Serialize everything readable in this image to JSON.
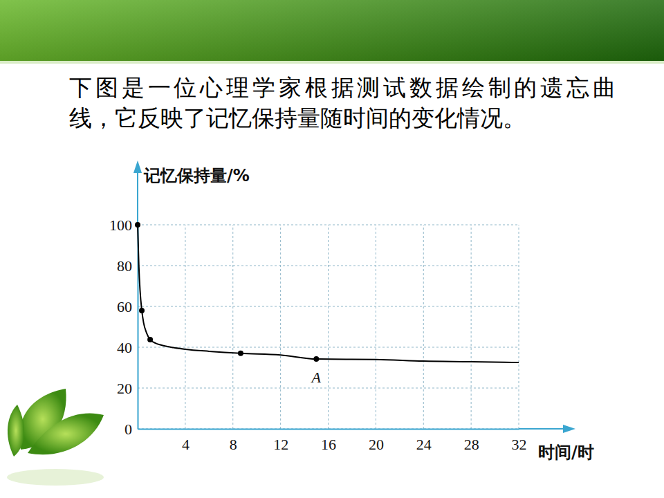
{
  "chart_data": {
    "type": "line",
    "title": [
      "下图是一位心理学家根据测试数据绘制的遗忘曲",
      "线，它反映了记忆保持量随时间的变化情况。"
    ],
    "x_label": "时间/时",
    "y_label": "记忆保持量/%",
    "xlim": [
      0,
      32
    ],
    "ylim": [
      0,
      100
    ],
    "xticks": [
      4,
      8,
      12,
      16,
      20,
      24,
      28,
      32
    ],
    "yticks": [
      0,
      20,
      40,
      60,
      80,
      100
    ],
    "grid": true,
    "series": [
      {
        "type": "line",
        "color": "#000000",
        "line_style": "solid",
        "x": [
          0,
          0.1,
          0.2,
          0.35,
          0.5,
          0.75,
          1.05,
          1.5,
          2,
          3,
          4,
          6,
          8.65,
          12,
          15,
          20,
          24,
          28,
          32
        ],
        "values": [
          100,
          80,
          68,
          58,
          52,
          47,
          43.7,
          42,
          41,
          39.8,
          39,
          38,
          37,
          36.2,
          34.2,
          34,
          33.2,
          32.9,
          32.5
        ]
      },
      {
        "type": "scatter",
        "color": "#000000",
        "marker": "circle",
        "x": [
          0,
          0.35,
          1.05,
          8.65,
          15
        ],
        "values": [
          100,
          58,
          43.7,
          37,
          34.2
        ]
      }
    ],
    "annotations": [
      {
        "text": "A",
        "x": 15,
        "y": 34.2
      }
    ]
  }
}
